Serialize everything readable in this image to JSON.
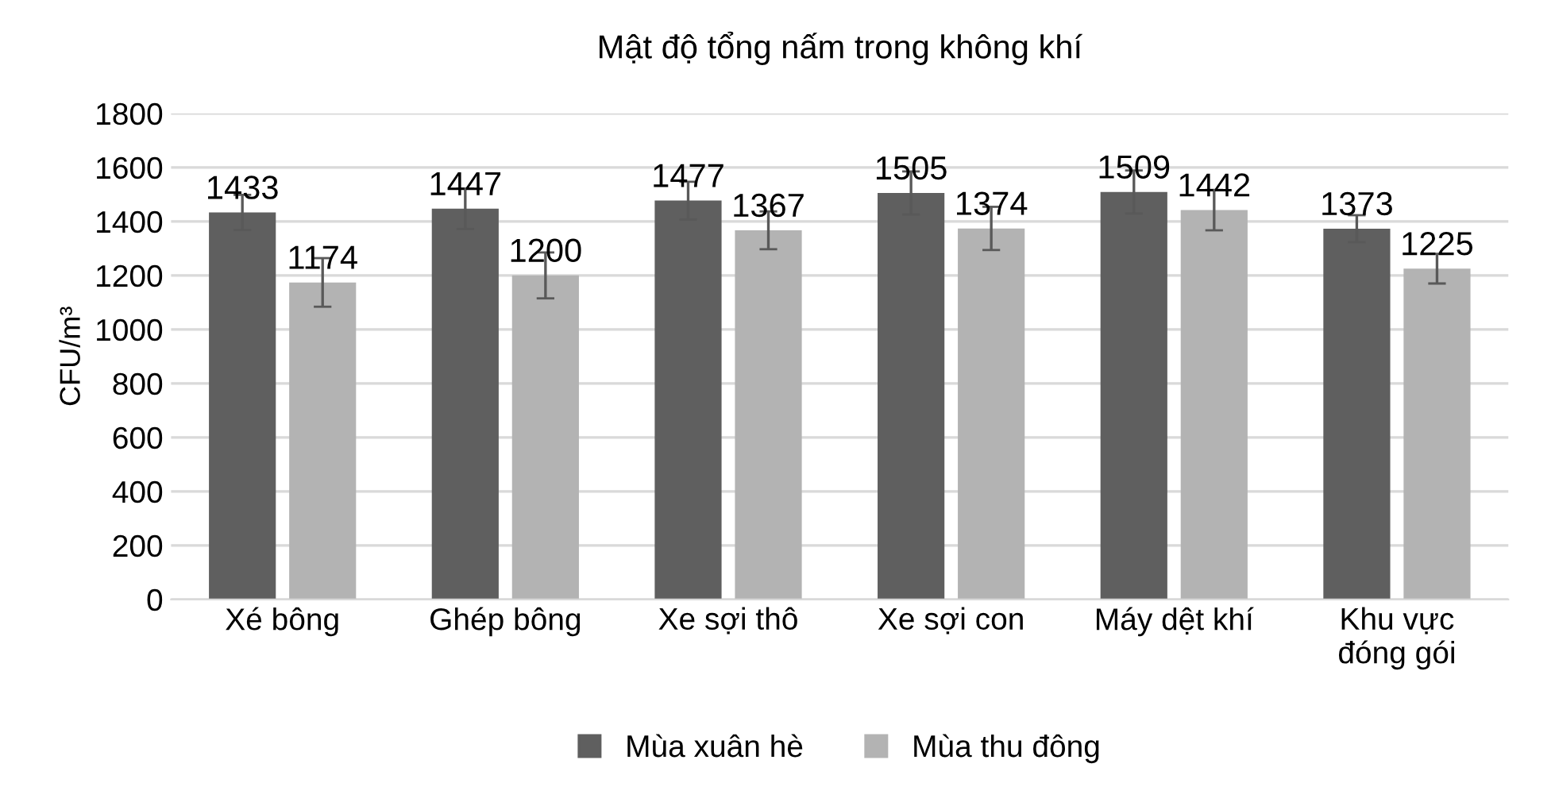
{
  "chart_data": {
    "type": "bar",
    "title": "Mật độ tổng nấm trong không khí",
    "ylabel": "CFU/m³",
    "categories": [
      "Xé bông",
      "Ghép bông",
      "Xe sợi thô",
      "Xe sợi con",
      "Máy dệt khí",
      "Khu vực\nđóng gói"
    ],
    "series": [
      {
        "name": "Mùa xuân hè",
        "color": "#5f5f5f",
        "values": [
          1433,
          1447,
          1477,
          1505,
          1509,
          1373
        ],
        "errors": [
          65,
          75,
          70,
          80,
          80,
          50
        ]
      },
      {
        "name": "Mùa thu đông",
        "color": "#b3b3b3",
        "values": [
          1174,
          1200,
          1367,
          1374,
          1442,
          1225
        ],
        "errors": [
          90,
          85,
          70,
          80,
          75,
          55
        ]
      }
    ],
    "ylim": [
      0,
      1800
    ],
    "yticks": [
      0,
      200,
      400,
      600,
      800,
      1000,
      1200,
      1400,
      1600,
      1800
    ],
    "grid": "y",
    "legend": "bottom",
    "data_labels": true
  }
}
